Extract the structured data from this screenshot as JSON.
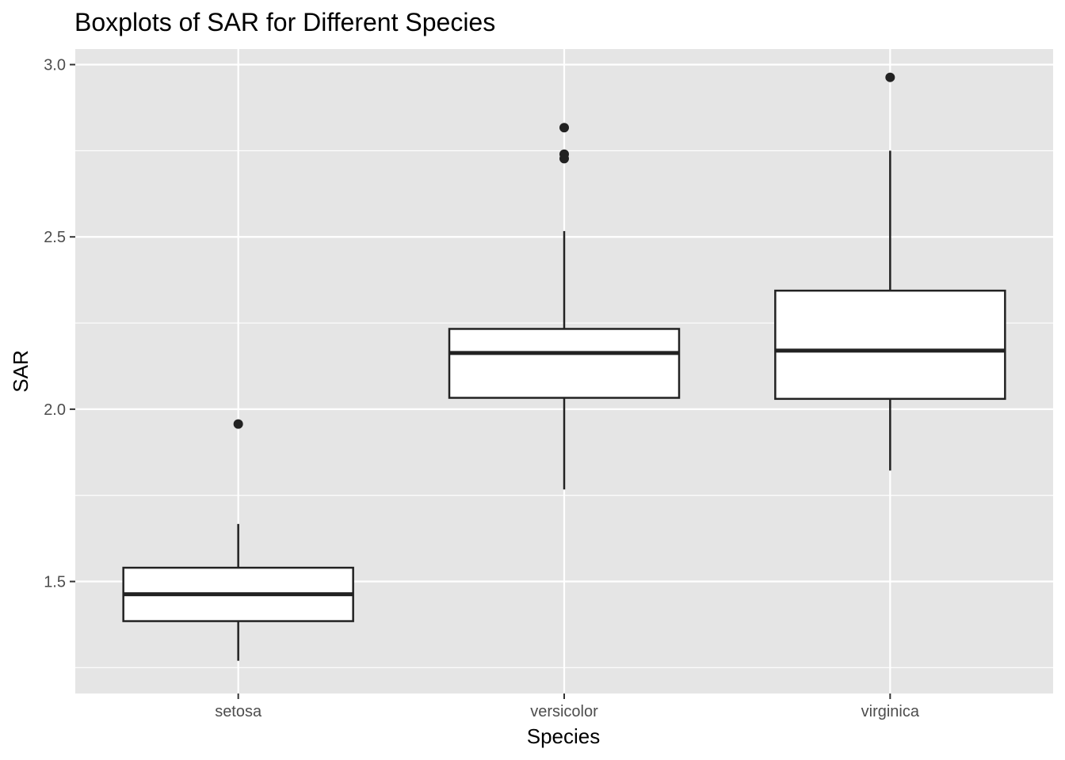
{
  "chart_data": {
    "type": "boxplot",
    "title": "Boxplots of SAR for Different Species",
    "xlabel": "Species",
    "ylabel": "SAR",
    "categories": [
      "setosa",
      "versicolor",
      "virginica"
    ],
    "ylim": [
      1.175,
      3.045
    ],
    "y_ticks": [
      1.5,
      2.0,
      2.5,
      3.0
    ],
    "y_tick_labels": [
      "1.5",
      "2.0",
      "2.5",
      "3.0"
    ],
    "y_minor_ticks": [
      1.25,
      1.75,
      2.25,
      2.75
    ],
    "grid": true,
    "legend": "none",
    "colors": {
      "panel_background": "#e5e5e5",
      "grid_line": "#ffffff",
      "box_fill": "#ffffff",
      "box_stroke": "#222222",
      "tick_text": "#4d4d4d"
    },
    "boxes": [
      {
        "category": "setosa",
        "whisker_low": 1.27,
        "q1": 1.385,
        "median": 1.463,
        "q3": 1.54,
        "whisker_high": 1.667,
        "outliers": [
          1.957
        ]
      },
      {
        "category": "versicolor",
        "whisker_low": 1.767,
        "q1": 2.033,
        "median": 2.163,
        "q3": 2.233,
        "whisker_high": 2.517,
        "outliers": [
          2.817,
          2.74,
          2.727
        ]
      },
      {
        "category": "virginica",
        "whisker_low": 1.822,
        "q1": 2.03,
        "median": 2.17,
        "q3": 2.344,
        "whisker_high": 2.75,
        "outliers": [
          2.963
        ]
      }
    ]
  }
}
